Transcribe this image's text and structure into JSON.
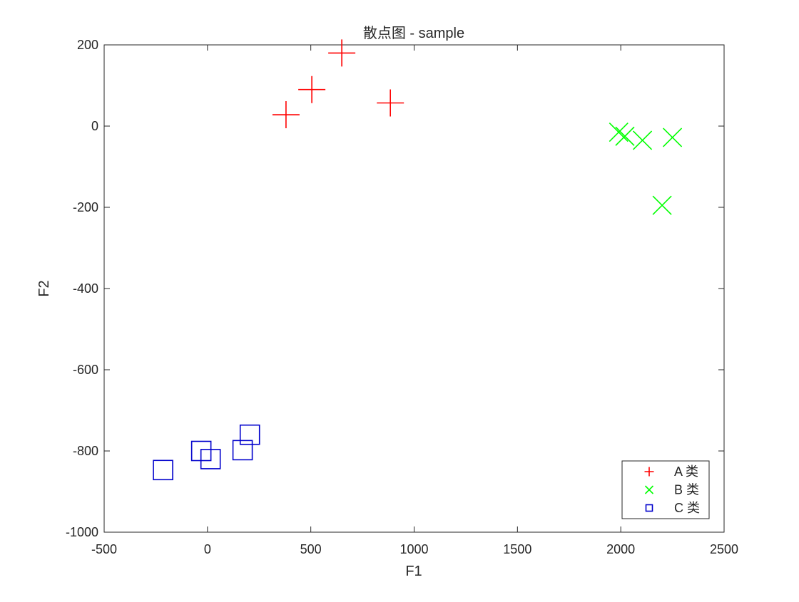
{
  "chart_data": {
    "type": "scatter",
    "title": "散点图 - sample",
    "xlabel": "F1",
    "ylabel": "F2",
    "xlim": [
      -500,
      2500
    ],
    "ylim": [
      -1000,
      200
    ],
    "xticks": [
      -500,
      0,
      500,
      1000,
      1500,
      2000,
      2500
    ],
    "yticks": [
      -1000,
      -800,
      -600,
      -400,
      -200,
      0,
      200
    ],
    "grid": false,
    "legend": "bottom-right",
    "series": [
      {
        "name": "A 类",
        "marker": "plus",
        "color": "#ff0000",
        "points": [
          [
            380,
            28
          ],
          [
            505,
            90
          ],
          [
            650,
            180
          ],
          [
            885,
            57
          ]
        ]
      },
      {
        "name": "B 类",
        "marker": "x",
        "color": "#00ff00",
        "points": [
          [
            1990,
            -15
          ],
          [
            2020,
            -25
          ],
          [
            2105,
            -35
          ],
          [
            2250,
            -28
          ],
          [
            2200,
            -195
          ]
        ]
      },
      {
        "name": "C 类",
        "marker": "square",
        "color": "#0000cc",
        "points": [
          [
            -215,
            -847
          ],
          [
            -30,
            -800
          ],
          [
            15,
            -820
          ],
          [
            170,
            -798
          ],
          [
            205,
            -760
          ]
        ]
      }
    ]
  }
}
